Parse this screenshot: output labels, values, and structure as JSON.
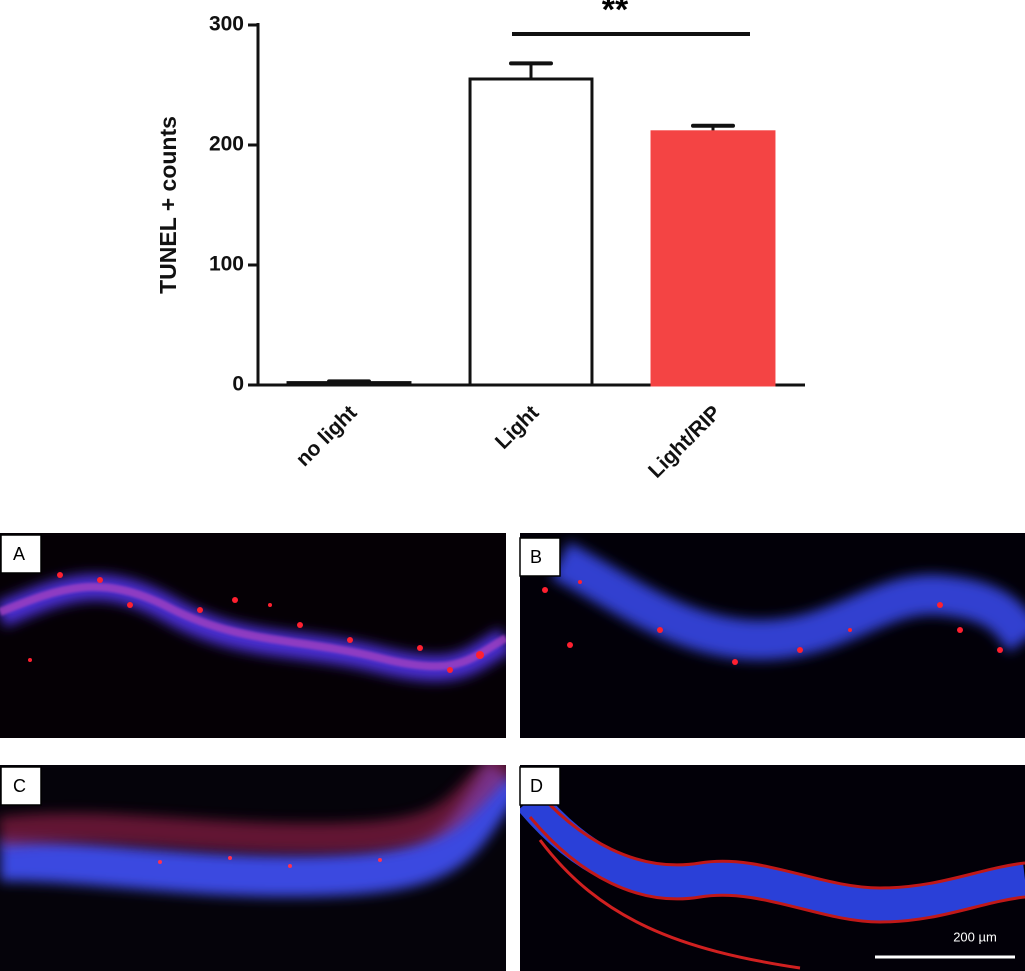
{
  "chart_data": {
    "type": "bar",
    "y_label": "TUNEL + counts",
    "categories": [
      "no light",
      "Light",
      "Light/RIP"
    ],
    "values": [
      2,
      255,
      211
    ],
    "errors": [
      1,
      13,
      5
    ],
    "colors": [
      "#ffffff",
      "#ffffff",
      "#f44444"
    ],
    "ylim": [
      0,
      300
    ],
    "yticks": [
      0,
      100,
      200,
      300
    ],
    "annotation": "**"
  },
  "panels": [
    "A",
    "B",
    "C",
    "D"
  ],
  "scale_bar": "200 µm"
}
